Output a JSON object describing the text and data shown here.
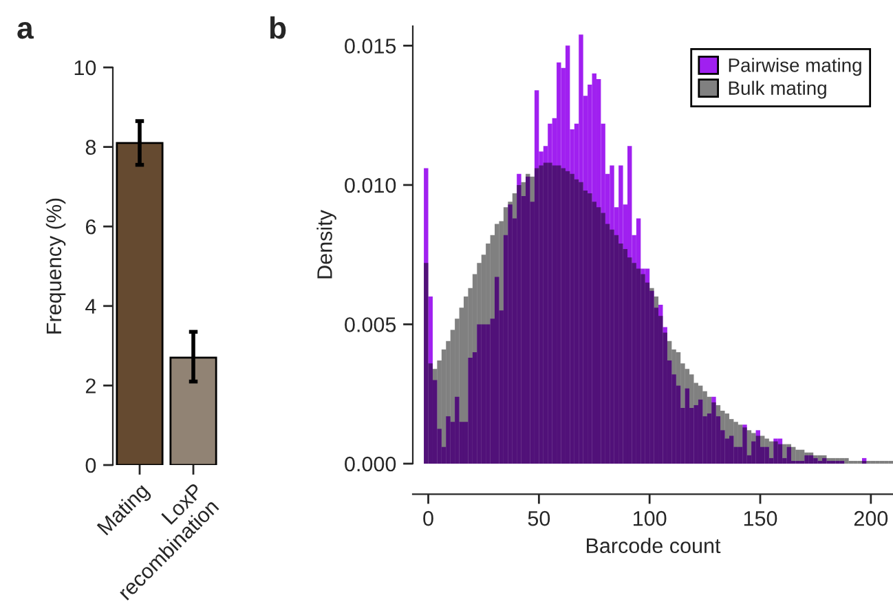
{
  "chart_data": [
    {
      "type": "bar",
      "title": "a",
      "ylabel": "Frequency (%)",
      "categories": [
        "Mating",
        "LoxP\nrecombination"
      ],
      "values": [
        8.1,
        2.7
      ],
      "colors": [
        "#654a30",
        "#918374"
      ],
      "errors": [
        [
          7.55,
          8.65
        ],
        [
          2.1,
          3.35
        ]
      ],
      "ylim": [
        0,
        10
      ],
      "yticks": [
        0,
        2,
        4,
        6,
        8,
        10
      ]
    },
    {
      "type": "histogram",
      "title": "b",
      "xlabel": "Barcode count",
      "ylabel": "Density",
      "legend": "top right",
      "bins": [
        -2,
        0,
        2,
        4,
        6,
        8,
        10,
        12,
        14,
        16,
        18,
        20,
        22,
        24,
        26,
        28,
        30,
        32,
        34,
        36,
        38,
        40,
        42,
        44,
        46,
        48,
        50,
        52,
        54,
        56,
        58,
        60,
        62,
        64,
        66,
        68,
        70,
        72,
        74,
        76,
        78,
        80,
        82,
        84,
        86,
        88,
        90,
        92,
        94,
        96,
        98,
        100,
        102,
        104,
        106,
        108,
        110,
        112,
        114,
        116,
        118,
        120,
        122,
        124,
        126,
        128,
        130,
        132,
        134,
        136,
        138,
        140,
        142,
        144,
        146,
        148,
        150,
        152,
        154,
        156,
        158,
        160,
        162,
        164,
        166,
        168,
        170,
        172,
        174,
        176,
        178,
        180,
        182,
        184,
        186,
        188,
        190,
        192,
        194,
        196,
        198,
        200,
        202,
        204,
        206,
        208,
        210
      ],
      "series": [
        {
          "name": "Pairwise mating",
          "color": "#a020f0",
          "values": [
            0.0106,
            0.006,
            0.003,
            0.00125,
            0.0006,
            0.0017,
            0.0015,
            0.0024,
            0.0015,
            0.0015,
            0.0038,
            0.004,
            0.005,
            0.005,
            0.005,
            0.0052,
            0.0067,
            0.0055,
            0.0082,
            0.0093,
            0.0088,
            0.0104,
            0.0096,
            0.0103,
            0.0094,
            0.0134,
            0.0112,
            0.0114,
            0.0122,
            0.0124,
            0.0144,
            0.0142,
            0.015,
            0.012,
            0.0122,
            0.0154,
            0.0132,
            0.0136,
            0.014,
            0.0138,
            0.0122,
            0.0104,
            0.0107,
            0.0092,
            0.0107,
            0.0093,
            0.0114,
            0.0082,
            0.0088,
            0.007,
            0.007,
            0.0062,
            0.0056,
            0.0057,
            0.0049,
            0.0037,
            0.0032,
            0.0028,
            0.002,
            0.0027,
            0.002,
            0.0021,
            0.0023,
            0.0017,
            0.0018,
            0.0024,
            0.0017,
            0.0012,
            0.0009,
            0.001,
            0.0006,
            0.0006,
            0.0014,
            0.0003,
            0.0008,
            0.0012,
            0.0006,
            0.0006,
            0.0002,
            0.0009,
            0.0009,
            0.0002,
            0.0006,
            0.0001,
            0.0001,
            0.0001,
            0.0003,
            0.0003,
            0.0002,
            0.0001,
            0.0002,
            0.0001,
            0.0001,
            0.0001,
            0.0001,
            0,
            0,
            0,
            0,
            0.0002,
            0,
            0,
            0,
            0,
            0,
            0
          ]
        },
        {
          "name": "Bulk mating",
          "color": "#808080",
          "values": [
            0.0072,
            0.0036,
            0.0034,
            0.0037,
            0.0041,
            0.0044,
            0.0048,
            0.0052,
            0.0056,
            0.006,
            0.0063,
            0.0068,
            0.0072,
            0.0075,
            0.0079,
            0.0082,
            0.0086,
            0.0087,
            0.0092,
            0.0094,
            0.0097,
            0.01,
            0.0101,
            0.0104,
            0.0103,
            0.0106,
            0.0107,
            0.0108,
            0.0108,
            0.0107,
            0.0107,
            0.0106,
            0.0105,
            0.0104,
            0.0102,
            0.0101,
            0.0098,
            0.0097,
            0.0094,
            0.0092,
            0.009,
            0.0086,
            0.0084,
            0.0082,
            0.0079,
            0.0077,
            0.0074,
            0.0072,
            0.007,
            0.0068,
            0.0065,
            0.0063,
            0.006,
            0.0053,
            0.0047,
            0.0044,
            0.0041,
            0.004,
            0.0036,
            0.0034,
            0.0032,
            0.0029,
            0.0028,
            0.0026,
            0.0024,
            0.0022,
            0.0021,
            0.0019,
            0.0018,
            0.0016,
            0.0015,
            0.0014,
            0.0013,
            0.0012,
            0.0011,
            0.001,
            0.001,
            0.0009,
            0.0008,
            0.0008,
            0.0007,
            0.0007,
            0.0007,
            0.0006,
            0.0005,
            0.0005,
            0.0004,
            0.0004,
            0.0003,
            0.0003,
            0.0003,
            0.0002,
            0.0002,
            0.0002,
            0.0002,
            0.0002,
            0.0001,
            0.0001,
            0.0001,
            0.0001,
            0.0001,
            0.0001,
            0.0001,
            0.0001,
            0.0001,
            0.0001
          ]
        }
      ],
      "xlim": [
        -7,
        210
      ],
      "xticks": [
        0,
        50,
        100,
        150,
        200
      ],
      "ylim": [
        0,
        0.0157
      ],
      "yticks": [
        {
          "value": 0,
          "label": "0.000"
        },
        {
          "value": 0.005,
          "label": "0.005"
        },
        {
          "value": 0.01,
          "label": "0.010"
        },
        {
          "value": 0.015,
          "label": "0.015"
        }
      ]
    }
  ]
}
